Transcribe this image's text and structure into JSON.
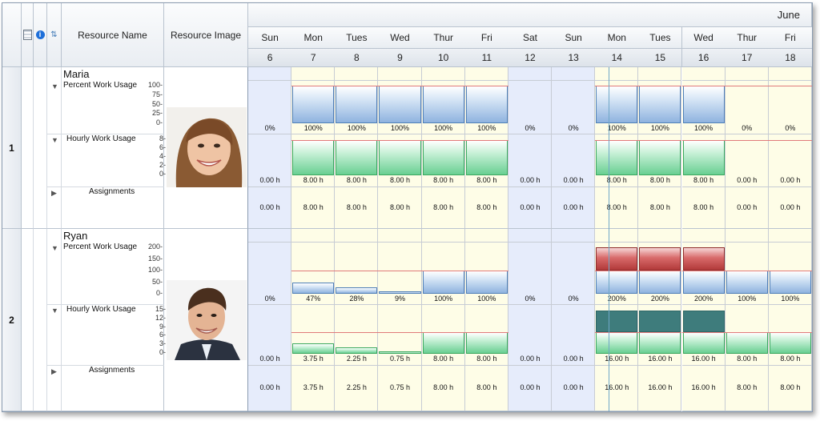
{
  "header": {
    "month": "June",
    "columns": {
      "name": "Resource Name",
      "image": "Resource Image"
    },
    "days": [
      {
        "d": "Sun",
        "n": "6",
        "type": "weekend"
      },
      {
        "d": "Mon",
        "n": "7",
        "type": "work"
      },
      {
        "d": "Tues",
        "n": "8",
        "type": "work"
      },
      {
        "d": "Wed",
        "n": "9",
        "type": "work"
      },
      {
        "d": "Thur",
        "n": "10",
        "type": "work"
      },
      {
        "d": "Fri",
        "n": "11",
        "type": "work"
      },
      {
        "d": "Sat",
        "n": "12",
        "type": "weekend"
      },
      {
        "d": "Sun",
        "n": "13",
        "type": "weekend"
      },
      {
        "d": "Mon",
        "n": "14",
        "type": "work"
      },
      {
        "d": "Tues",
        "n": "15",
        "type": "work"
      },
      {
        "d": "Wed",
        "n": "16",
        "type": "work"
      },
      {
        "d": "Thur",
        "n": "17",
        "type": "work"
      },
      {
        "d": "Fri",
        "n": "18",
        "type": "work"
      }
    ]
  },
  "resources": [
    {
      "index": "1",
      "name": "Maria",
      "pct_label": "Percent Work Usage",
      "pct_ticks": [
        "100-",
        "75-",
        "50-",
        "25-",
        "0-"
      ],
      "hourly_label": "Hourly Work Usage",
      "hourly_ticks": [
        "8-",
        "6-",
        "4-",
        "2-",
        "0-"
      ],
      "assign_label": "Assignments",
      "pct": [
        0,
        100,
        100,
        100,
        100,
        100,
        0,
        0,
        100,
        100,
        100,
        0,
        0
      ],
      "pct_text": [
        "0%",
        "100%",
        "100%",
        "100%",
        "100%",
        "100%",
        "0%",
        "0%",
        "100%",
        "100%",
        "100%",
        "0%",
        "0%"
      ],
      "hours": [
        0,
        8,
        8,
        8,
        8,
        8,
        0,
        0,
        8,
        8,
        8,
        0,
        0
      ],
      "hours_text": [
        "0.00 h",
        "8.00 h",
        "8.00 h",
        "8.00 h",
        "8.00 h",
        "8.00 h",
        "0.00 h",
        "0.00 h",
        "8.00 h",
        "8.00 h",
        "8.00 h",
        "0.00 h",
        "0.00 h"
      ],
      "assign_text": [
        "0.00 h",
        "8.00 h",
        "8.00 h",
        "8.00 h",
        "8.00 h",
        "8.00 h",
        "0.00 h",
        "0.00 h",
        "8.00 h",
        "8.00 h",
        "8.00 h",
        "0.00 h",
        "0.00 h"
      ]
    },
    {
      "index": "2",
      "name": "Ryan",
      "pct_label": "Percent Work Usage",
      "pct_ticks": [
        "200-",
        "150-",
        "100-",
        "50-",
        "0-"
      ],
      "hourly_label": "Hourly Work Usage",
      "hourly_ticks": [
        "15-",
        "12-",
        "9-",
        "6-",
        "3-",
        "0-"
      ],
      "assign_label": "Assignments",
      "pct": [
        0,
        47,
        28,
        9,
        100,
        100,
        0,
        0,
        200,
        200,
        200,
        100,
        100
      ],
      "pct_text": [
        "0%",
        "47%",
        "28%",
        "9%",
        "100%",
        "100%",
        "0%",
        "0%",
        "200%",
        "200%",
        "200%",
        "100%",
        "100%"
      ],
      "hours": [
        0,
        3.75,
        2.25,
        0.75,
        8,
        8,
        0,
        0,
        16,
        16,
        16,
        8,
        8
      ],
      "hours_text": [
        "0.00 h",
        "3.75 h",
        "2.25 h",
        "0.75 h",
        "8.00 h",
        "8.00 h",
        "0.00 h",
        "0.00 h",
        "16.00 h",
        "16.00 h",
        "16.00 h",
        "8.00 h",
        "8.00 h"
      ],
      "assign_text": [
        "0.00 h",
        "3.75 h",
        "2.25 h",
        "0.75 h",
        "8.00 h",
        "8.00 h",
        "0.00 h",
        "0.00 h",
        "16.00 h",
        "16.00 h",
        "16.00 h",
        "8.00 h",
        "8.00 h"
      ]
    }
  ],
  "colors": {
    "weekend_bg": "#e6ecfb",
    "work_bg": "#fefde7",
    "capacity_line": "#e07a7a",
    "today_line": "#6fa7c7"
  },
  "icons": [
    "grid-icon",
    "info-icon",
    "sort-icon",
    "expand-arrow-icon",
    "collapse-arrow-icon"
  ]
}
